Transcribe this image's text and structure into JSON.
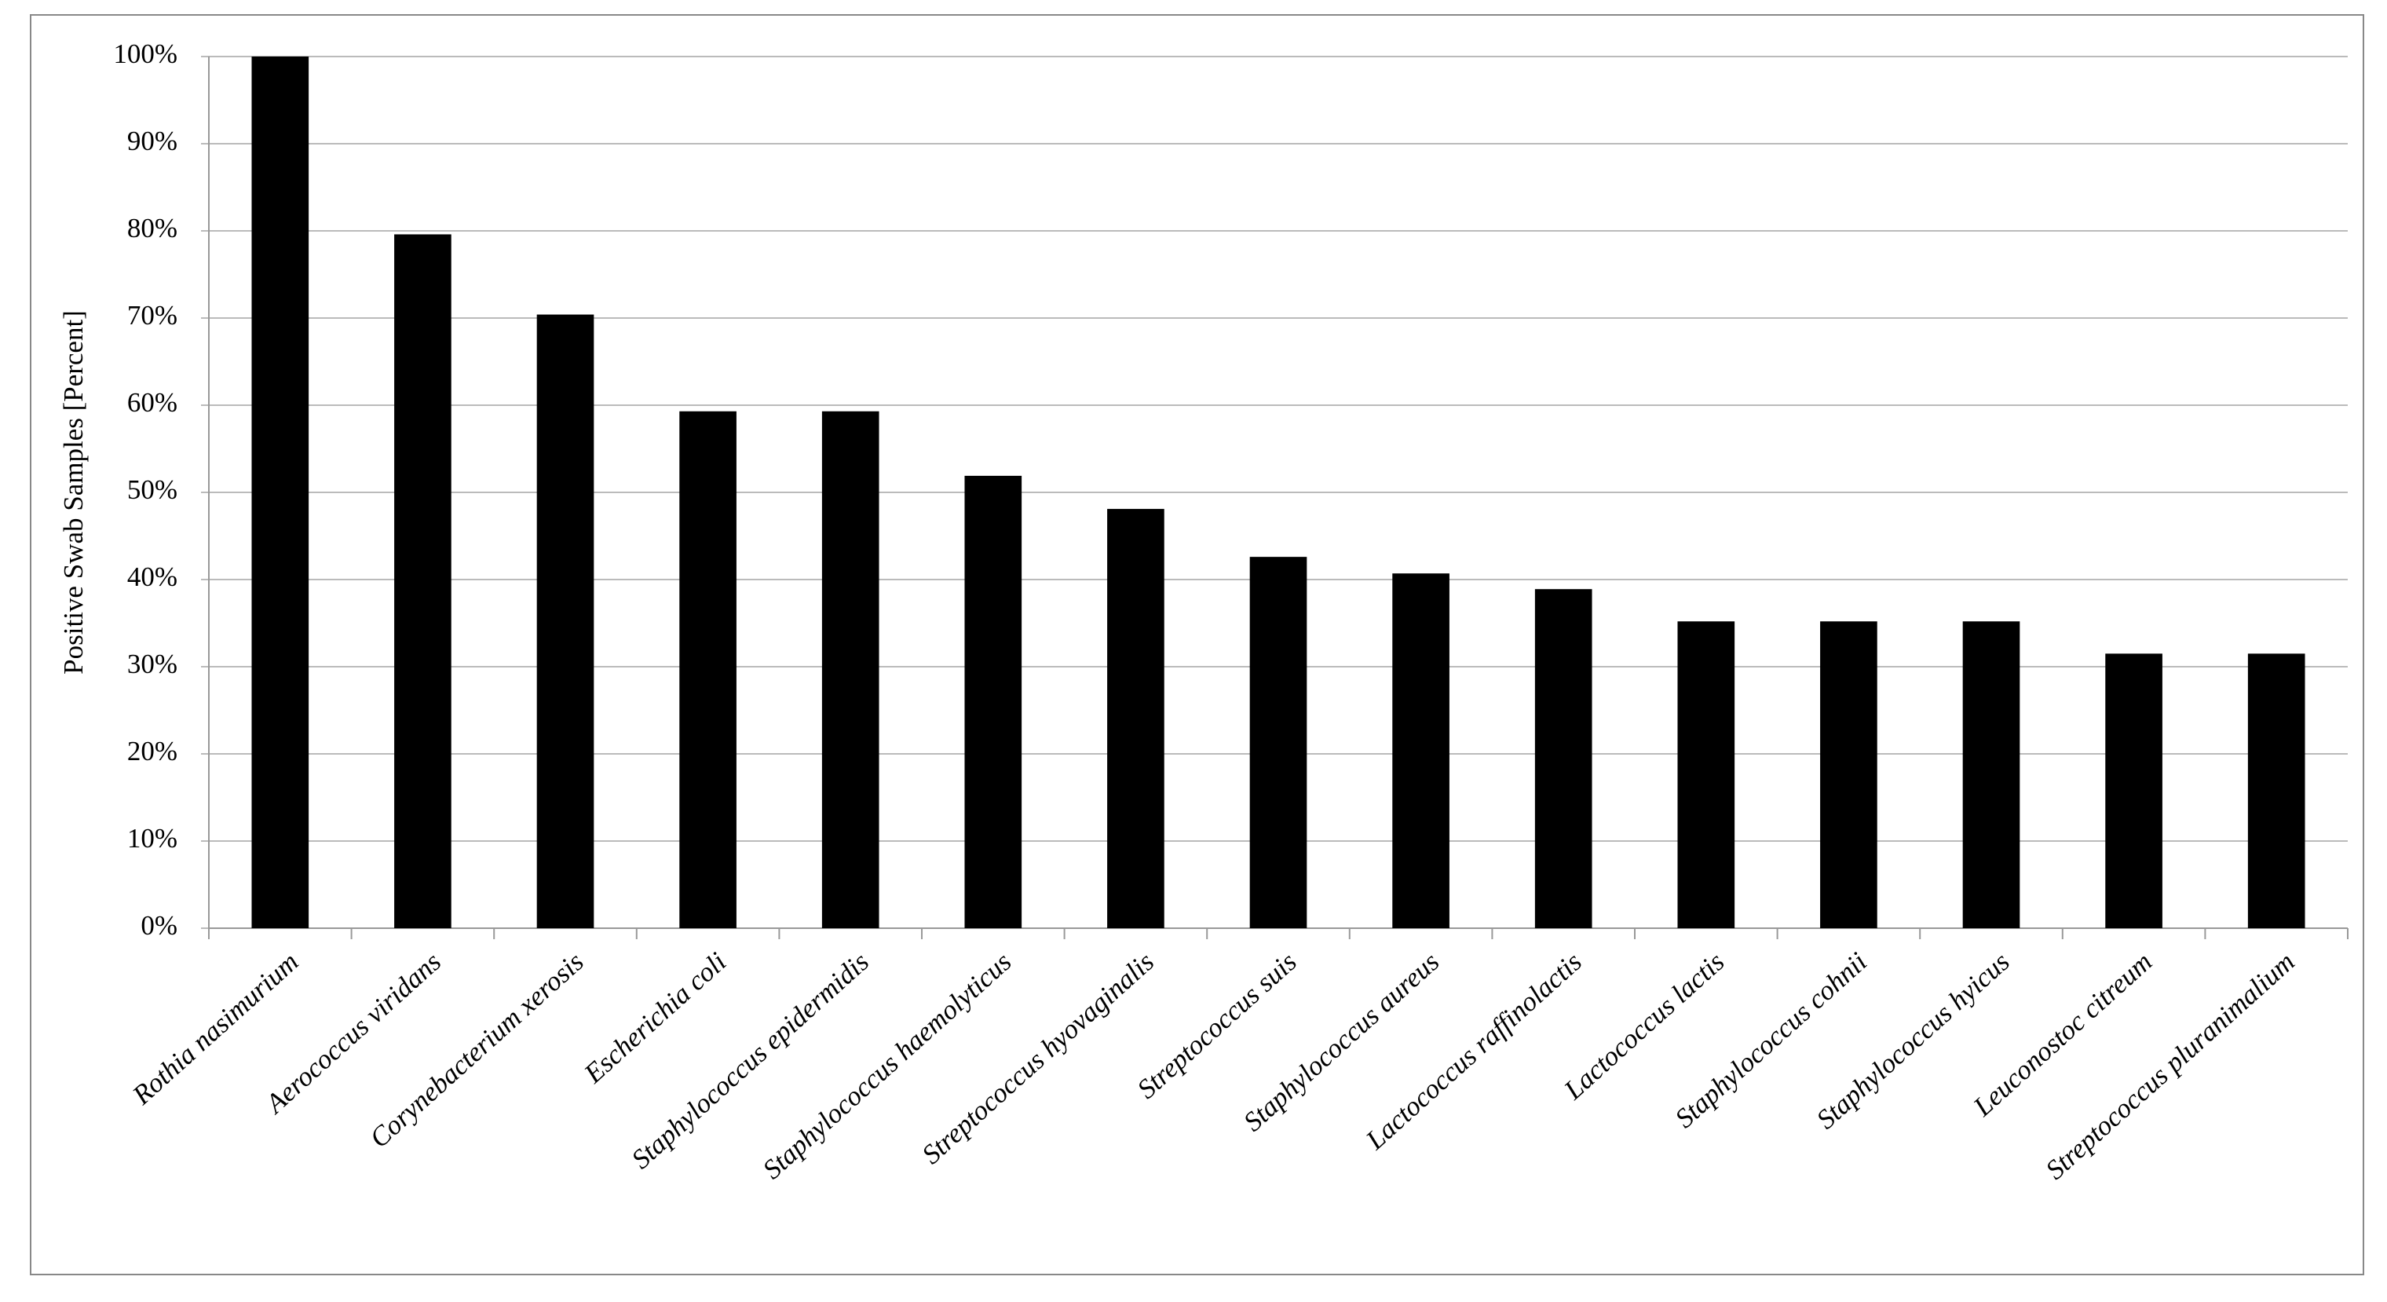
{
  "chart_data": {
    "type": "bar",
    "y_label": "Positive Swab Samples [Percent]",
    "categories": [
      "Rothia nasimurium",
      "Aerococcus viridans",
      "Corynebacterium xerosis",
      "Escherichia coli",
      "Staphylococcus epidermidis",
      "Staphylococcus haemolyticus",
      "Streptococcus hyovaginalis",
      "Streptococcus suis",
      "Staphylococcus aureus",
      "Lactococcus raffinolactis",
      "Lactococcus lactis",
      "Staphylococcus cohnii",
      "Staphylococcus hyicus",
      "Leuconostoc citreum",
      "Streptococcus pluranimalium"
    ],
    "values": [
      100,
      79.6,
      70.4,
      59.3,
      59.3,
      51.9,
      48.1,
      42.6,
      40.7,
      38.9,
      35.2,
      35.2,
      35.2,
      31.5,
      31.5
    ],
    "color": "#000000",
    "ylim": [
      0,
      100
    ],
    "yticks": [
      {
        "value": 0,
        "label": "0%"
      },
      {
        "value": 10,
        "label": "10%"
      },
      {
        "value": 20,
        "label": "20%"
      },
      {
        "value": 30,
        "label": "30%"
      },
      {
        "value": 40,
        "label": "40%"
      },
      {
        "value": 50,
        "label": "50%"
      },
      {
        "value": 60,
        "label": "60%"
      },
      {
        "value": 70,
        "label": "70%"
      },
      {
        "value": 80,
        "label": "80%"
      },
      {
        "value": 90,
        "label": "90%"
      },
      {
        "value": 100,
        "label": "100%"
      }
    ],
    "grid": true
  }
}
